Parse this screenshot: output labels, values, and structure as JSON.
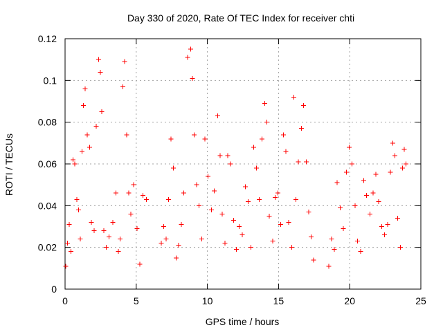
{
  "chart_data": {
    "type": "scatter",
    "title": "Day 330 of 2020, Rate Of TEC Index for receiver chti",
    "xlabel": "GPS time / hours",
    "ylabel": "ROTI / TECUs",
    "xlim": [
      0,
      25
    ],
    "ylim": [
      0,
      0.12
    ],
    "x_ticks": [
      "0",
      "5",
      "10",
      "15",
      "20",
      "25"
    ],
    "y_ticks": [
      "0",
      "0.02",
      "0.04",
      "0.06",
      "0.08",
      "0.1",
      "0.12"
    ],
    "grid": true,
    "legend": "none",
    "marker": "+",
    "series": [
      {
        "color": "#ff0000",
        "values": [
          {
            "x": 0.05,
            "y": 0.011
          },
          {
            "x": 0.18,
            "y": 0.022
          },
          {
            "x": 0.28,
            "y": 0.031
          },
          {
            "x": 0.42,
            "y": 0.018
          },
          {
            "x": 0.55,
            "y": 0.062
          },
          {
            "x": 0.68,
            "y": 0.06
          },
          {
            "x": 0.82,
            "y": 0.043
          },
          {
            "x": 0.96,
            "y": 0.038
          },
          {
            "x": 1.08,
            "y": 0.024
          },
          {
            "x": 1.18,
            "y": 0.066
          },
          {
            "x": 1.3,
            "y": 0.088
          },
          {
            "x": 1.42,
            "y": 0.096
          },
          {
            "x": 1.56,
            "y": 0.074
          },
          {
            "x": 1.72,
            "y": 0.068
          },
          {
            "x": 1.86,
            "y": 0.032
          },
          {
            "x": 2.05,
            "y": 0.028
          },
          {
            "x": 2.18,
            "y": 0.078
          },
          {
            "x": 2.36,
            "y": 0.11
          },
          {
            "x": 2.48,
            "y": 0.104
          },
          {
            "x": 2.58,
            "y": 0.085
          },
          {
            "x": 2.72,
            "y": 0.028
          },
          {
            "x": 2.9,
            "y": 0.02
          },
          {
            "x": 3.1,
            "y": 0.025
          },
          {
            "x": 3.35,
            "y": 0.032
          },
          {
            "x": 3.58,
            "y": 0.046
          },
          {
            "x": 3.74,
            "y": 0.018
          },
          {
            "x": 3.86,
            "y": 0.024
          },
          {
            "x": 4.05,
            "y": 0.097
          },
          {
            "x": 4.18,
            "y": 0.109
          },
          {
            "x": 4.32,
            "y": 0.074
          },
          {
            "x": 4.48,
            "y": 0.046
          },
          {
            "x": 4.62,
            "y": 0.036
          },
          {
            "x": 4.82,
            "y": 0.05
          },
          {
            "x": 5.05,
            "y": 0.029
          },
          {
            "x": 5.26,
            "y": 0.012
          },
          {
            "x": 5.48,
            "y": 0.045
          },
          {
            "x": 5.72,
            "y": 0.043
          },
          {
            "x": 6.76,
            "y": 0.022
          },
          {
            "x": 6.92,
            "y": 0.03
          },
          {
            "x": 7.1,
            "y": 0.024
          },
          {
            "x": 7.28,
            "y": 0.043
          },
          {
            "x": 7.45,
            "y": 0.072
          },
          {
            "x": 7.62,
            "y": 0.058
          },
          {
            "x": 7.8,
            "y": 0.015
          },
          {
            "x": 7.98,
            "y": 0.021
          },
          {
            "x": 8.16,
            "y": 0.031
          },
          {
            "x": 8.35,
            "y": 0.046
          },
          {
            "x": 8.6,
            "y": 0.111
          },
          {
            "x": 8.82,
            "y": 0.115
          },
          {
            "x": 8.94,
            "y": 0.101
          },
          {
            "x": 9.08,
            "y": 0.074
          },
          {
            "x": 9.24,
            "y": 0.05
          },
          {
            "x": 9.4,
            "y": 0.04
          },
          {
            "x": 9.6,
            "y": 0.024
          },
          {
            "x": 9.82,
            "y": 0.072
          },
          {
            "x": 10.05,
            "y": 0.054
          },
          {
            "x": 10.28,
            "y": 0.038
          },
          {
            "x": 10.48,
            "y": 0.047
          },
          {
            "x": 10.72,
            "y": 0.083
          },
          {
            "x": 10.9,
            "y": 0.064
          },
          {
            "x": 11.05,
            "y": 0.036
          },
          {
            "x": 11.24,
            "y": 0.022
          },
          {
            "x": 11.42,
            "y": 0.064
          },
          {
            "x": 11.62,
            "y": 0.06
          },
          {
            "x": 11.84,
            "y": 0.033
          },
          {
            "x": 12.05,
            "y": 0.019
          },
          {
            "x": 12.24,
            "y": 0.03
          },
          {
            "x": 12.46,
            "y": 0.026
          },
          {
            "x": 12.66,
            "y": 0.049
          },
          {
            "x": 12.86,
            "y": 0.042
          },
          {
            "x": 13.06,
            "y": 0.02
          },
          {
            "x": 13.26,
            "y": 0.068
          },
          {
            "x": 13.44,
            "y": 0.058
          },
          {
            "x": 13.64,
            "y": 0.043
          },
          {
            "x": 13.84,
            "y": 0.072
          },
          {
            "x": 14.02,
            "y": 0.089
          },
          {
            "x": 14.18,
            "y": 0.08
          },
          {
            "x": 14.36,
            "y": 0.035
          },
          {
            "x": 14.58,
            "y": 0.023
          },
          {
            "x": 14.76,
            "y": 0.044
          },
          {
            "x": 14.96,
            "y": 0.046
          },
          {
            "x": 15.14,
            "y": 0.031
          },
          {
            "x": 15.34,
            "y": 0.074
          },
          {
            "x": 15.52,
            "y": 0.066
          },
          {
            "x": 15.72,
            "y": 0.032
          },
          {
            "x": 15.92,
            "y": 0.02
          },
          {
            "x": 16.08,
            "y": 0.092
          },
          {
            "x": 16.22,
            "y": 0.043
          },
          {
            "x": 16.4,
            "y": 0.061
          },
          {
            "x": 16.6,
            "y": 0.077
          },
          {
            "x": 16.76,
            "y": 0.088
          },
          {
            "x": 16.94,
            "y": 0.061
          },
          {
            "x": 17.12,
            "y": 0.037
          },
          {
            "x": 17.28,
            "y": 0.025
          },
          {
            "x": 17.46,
            "y": 0.014
          },
          {
            "x": 18.54,
            "y": 0.011
          },
          {
            "x": 18.72,
            "y": 0.024
          },
          {
            "x": 18.92,
            "y": 0.019
          },
          {
            "x": 19.12,
            "y": 0.051
          },
          {
            "x": 19.34,
            "y": 0.039
          },
          {
            "x": 19.56,
            "y": 0.029
          },
          {
            "x": 19.78,
            "y": 0.056
          },
          {
            "x": 19.96,
            "y": 0.068
          },
          {
            "x": 20.16,
            "y": 0.06
          },
          {
            "x": 20.38,
            "y": 0.04
          },
          {
            "x": 20.56,
            "y": 0.023
          },
          {
            "x": 20.76,
            "y": 0.018
          },
          {
            "x": 20.98,
            "y": 0.052
          },
          {
            "x": 21.18,
            "y": 0.045
          },
          {
            "x": 21.42,
            "y": 0.036
          },
          {
            "x": 21.64,
            "y": 0.046
          },
          {
            "x": 21.84,
            "y": 0.055
          },
          {
            "x": 22.04,
            "y": 0.042
          },
          {
            "x": 22.24,
            "y": 0.03
          },
          {
            "x": 22.44,
            "y": 0.026
          },
          {
            "x": 22.66,
            "y": 0.031
          },
          {
            "x": 22.86,
            "y": 0.056
          },
          {
            "x": 23.04,
            "y": 0.07
          },
          {
            "x": 23.18,
            "y": 0.064
          },
          {
            "x": 23.36,
            "y": 0.034
          },
          {
            "x": 23.56,
            "y": 0.02
          },
          {
            "x": 23.72,
            "y": 0.058
          },
          {
            "x": 23.84,
            "y": 0.067
          },
          {
            "x": 23.96,
            "y": 0.06
          }
        ]
      }
    ]
  }
}
